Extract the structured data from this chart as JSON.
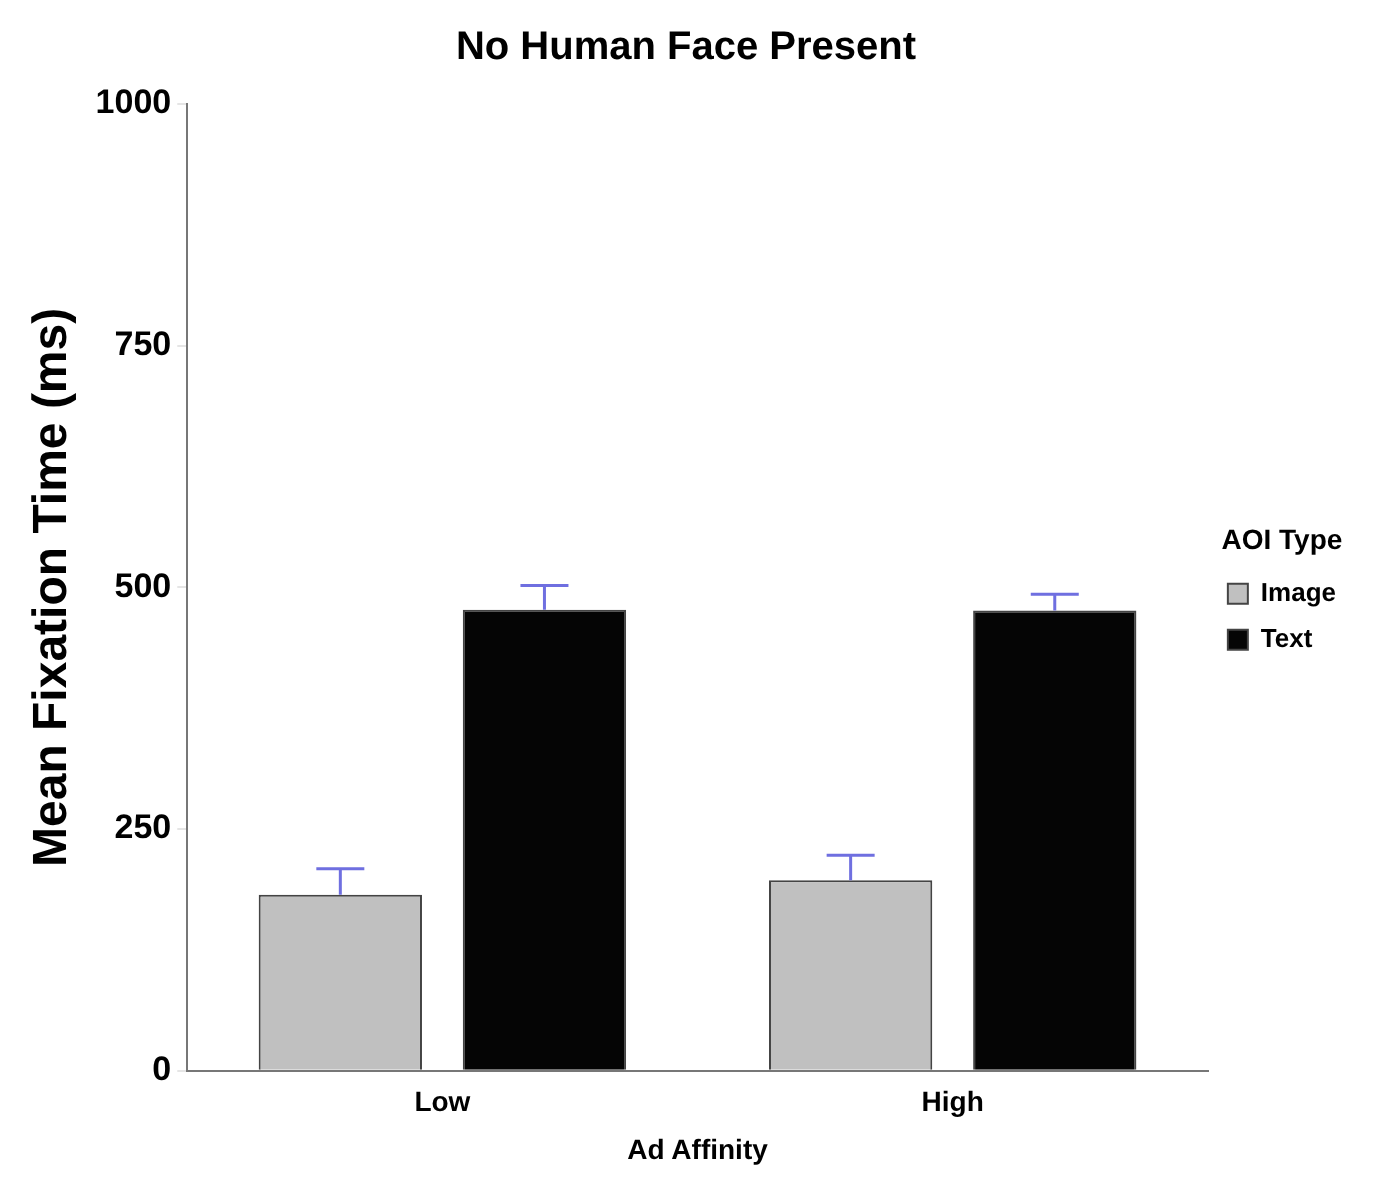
{
  "chart_data": {
    "type": "bar",
    "title": "No Human Face Present",
    "xlabel": "Ad Affinity",
    "ylabel": "Mean Fixation Time (ms)",
    "legend_title": "AOI Type",
    "categories": [
      "Low",
      "High"
    ],
    "series": [
      {
        "name": "Image",
        "color": "#c0c0c0",
        "values": [
          182,
          197
        ],
        "errors": [
          27,
          26
        ]
      },
      {
        "name": "Text",
        "color": "#050505",
        "values": [
          477,
          476
        ],
        "errors": [
          25,
          17
        ]
      }
    ],
    "ylim": [
      0,
      1000
    ],
    "yticks": [
      0,
      250,
      500,
      750,
      1000
    ],
    "grid": false,
    "legend": "right"
  }
}
